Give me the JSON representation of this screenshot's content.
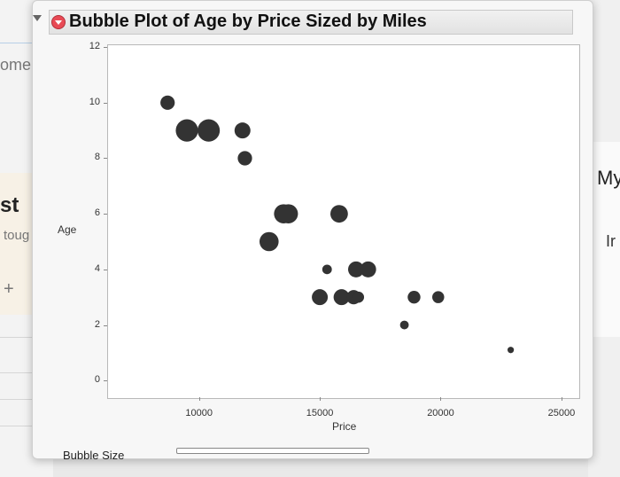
{
  "background": {
    "left_texts": [
      "ome",
      "st",
      "toug",
      "+"
    ],
    "right_texts": [
      "My",
      "Ir"
    ]
  },
  "report": {
    "title": "Bubble Plot of Age by Price Sized by Miles",
    "bubble_size_label": "Bubble Size",
    "icons": [
      "disclosure-triangle-icon",
      "red-triangle-menu-icon",
      "slider-thumb-icon"
    ],
    "accent_color": "#e84a55"
  },
  "chart_data": {
    "type": "scatter",
    "title": "Bubble Plot of Age by Price Sized by Miles",
    "xlabel": "Price",
    "ylabel": "Age",
    "xlim": [
      6200,
      25700
    ],
    "ylim": [
      -0.6,
      12.1
    ],
    "xticks": [
      10000,
      15000,
      20000,
      25000
    ],
    "yticks": [
      0,
      2,
      4,
      6,
      8,
      10,
      12
    ],
    "xtick_labels": [
      "10000",
      "15000",
      "20000",
      "25000"
    ],
    "ytick_labels": [
      "0",
      "2",
      "4",
      "6",
      "8",
      "10",
      "12"
    ],
    "bubble_color": "#333333",
    "points": [
      {
        "x": 8700,
        "y": 10,
        "size": 0.9
      },
      {
        "x": 9500,
        "y": 9,
        "size": 1.4
      },
      {
        "x": 10400,
        "y": 9,
        "size": 1.4
      },
      {
        "x": 11800,
        "y": 9,
        "size": 1.0
      },
      {
        "x": 11900,
        "y": 8,
        "size": 0.9
      },
      {
        "x": 13500,
        "y": 6,
        "size": 1.2
      },
      {
        "x": 13700,
        "y": 6,
        "size": 1.2
      },
      {
        "x": 15800,
        "y": 6,
        "size": 1.1
      },
      {
        "x": 12900,
        "y": 5,
        "size": 1.2
      },
      {
        "x": 15300,
        "y": 4,
        "size": 0.6
      },
      {
        "x": 16500,
        "y": 4,
        "size": 1.0
      },
      {
        "x": 17000,
        "y": 4,
        "size": 1.0
      },
      {
        "x": 15000,
        "y": 3,
        "size": 1.0
      },
      {
        "x": 15900,
        "y": 3,
        "size": 1.0
      },
      {
        "x": 16400,
        "y": 3,
        "size": 0.9
      },
      {
        "x": 16600,
        "y": 3,
        "size": 0.7
      },
      {
        "x": 18900,
        "y": 3,
        "size": 0.8
      },
      {
        "x": 19900,
        "y": 3,
        "size": 0.75
      },
      {
        "x": 18500,
        "y": 2,
        "size": 0.55
      },
      {
        "x": 22900,
        "y": 1.1,
        "size": 0.4
      }
    ]
  }
}
